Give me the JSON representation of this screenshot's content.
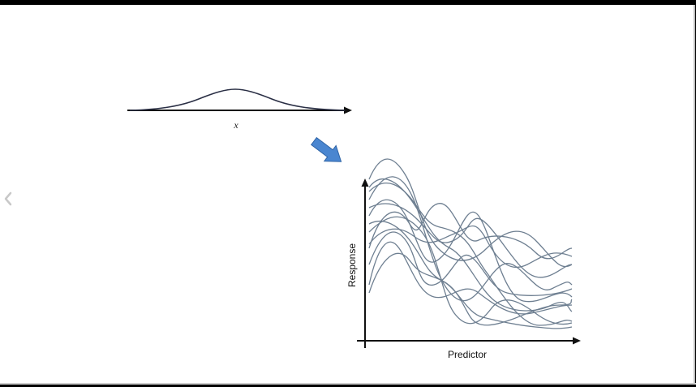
{
  "slide": {
    "distribution_axis_label": "x",
    "y_axis_label": "Response",
    "x_axis_label": "Predictor"
  },
  "icons": {
    "nav_prev": "chevron-left-icon",
    "arrow": "diagonal-arrow-icon"
  },
  "colors": {
    "background": "#ffffff",
    "frame": "#000000",
    "curve": "#6e7f91",
    "arrow_fill": "#4a86d0",
    "arrow_stroke": "#2f64a6",
    "axis": "#111111"
  }
}
